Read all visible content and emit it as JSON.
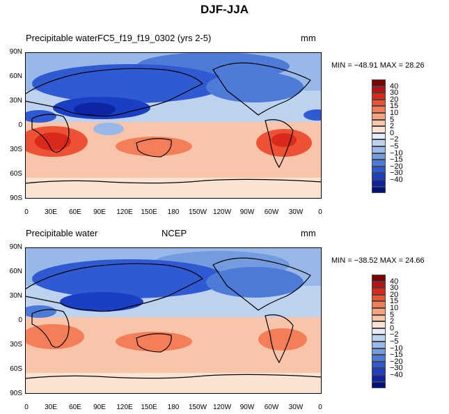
{
  "title": "DJF-JJA",
  "colorbar": {
    "colors": [
      "#7a0303",
      "#b81313",
      "#d92a1c",
      "#ec5233",
      "#f47e57",
      "#f8a37f",
      "#f8c5aa",
      "#fbe3d4",
      "#e1ecf8",
      "#bcd2ef",
      "#98b9e8",
      "#729cdf",
      "#4e7bd8",
      "#2f5ad2",
      "#1a3ec4",
      "#0d25a3",
      "#03117a"
    ],
    "labels": [
      "40",
      "30",
      "20",
      "15",
      "10",
      "5",
      "2",
      "0",
      "−2",
      "−5",
      "−10",
      "−15",
      "−20",
      "−30",
      "−40"
    ]
  },
  "axes": {
    "y_ticks": [
      "90N",
      "60N",
      "30N",
      "0",
      "30S",
      "60S",
      "90S"
    ],
    "x_ticks": [
      "0",
      "30E",
      "60E",
      "90E",
      "120E",
      "150E",
      "180",
      "150W",
      "120W",
      "90W",
      "60W",
      "30W",
      "0"
    ]
  },
  "chart_data": [
    {
      "type": "heatmap",
      "title": "FC5_f19_f19_0302 (yrs 2-5)",
      "variable": "Precipitable water",
      "units": "mm",
      "min": "−48.91",
      "max": "28.26",
      "levels": [
        -40,
        -30,
        -20,
        -15,
        -10,
        -5,
        -2,
        0,
        2,
        5,
        10,
        15,
        20,
        30,
        40
      ],
      "xlim": [
        0,
        360
      ],
      "ylim": [
        -90,
        90
      ]
    },
    {
      "type": "heatmap",
      "title": "NCEP",
      "variable": "Precipitable water",
      "units": "mm",
      "min": "−38.52",
      "max": "24.66",
      "levels": [
        -40,
        -30,
        -20,
        -15,
        -10,
        -5,
        -2,
        0,
        2,
        5,
        10,
        15,
        20,
        30,
        40
      ],
      "xlim": [
        0,
        360
      ],
      "ylim": [
        -90,
        90
      ]
    }
  ]
}
